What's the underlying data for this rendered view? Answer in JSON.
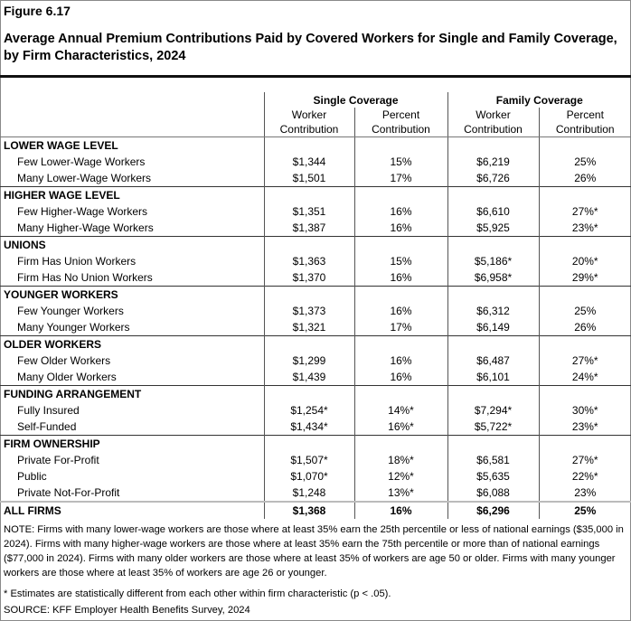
{
  "figure_label": "Figure 6.17",
  "title": "Average Annual Premium Contributions Paid by Covered Workers for Single and Family Coverage, by Firm Characteristics, 2024",
  "header": {
    "groups": [
      "Single Coverage",
      "Family Coverage"
    ],
    "columns": [
      [
        "Worker",
        "Contribution"
      ],
      [
        "Percent",
        "Contribution"
      ],
      [
        "Worker",
        "Contribution"
      ],
      [
        "Percent",
        "Contribution"
      ]
    ]
  },
  "sections": [
    {
      "name": "LOWER WAGE LEVEL",
      "rows": [
        {
          "label": "Few Lower-Wage Workers",
          "values": [
            "$1,344",
            "15%",
            "$6,219",
            "25%"
          ]
        },
        {
          "label": "Many Lower-Wage Workers",
          "values": [
            "$1,501",
            "17%",
            "$6,726",
            "26%"
          ]
        }
      ]
    },
    {
      "name": "HIGHER WAGE LEVEL",
      "rows": [
        {
          "label": "Few Higher-Wage Workers",
          "values": [
            "$1,351",
            "16%",
            "$6,610",
            "27%*"
          ]
        },
        {
          "label": "Many Higher-Wage Workers",
          "values": [
            "$1,387",
            "16%",
            "$5,925",
            "23%*"
          ]
        }
      ]
    },
    {
      "name": "UNIONS",
      "rows": [
        {
          "label": "Firm Has Union Workers",
          "values": [
            "$1,363",
            "15%",
            "$5,186*",
            "20%*"
          ]
        },
        {
          "label": "Firm Has No Union Workers",
          "values": [
            "$1,370",
            "16%",
            "$6,958*",
            "29%*"
          ]
        }
      ]
    },
    {
      "name": "YOUNGER WORKERS",
      "rows": [
        {
          "label": "Few Younger Workers",
          "values": [
            "$1,373",
            "16%",
            "$6,312",
            "25%"
          ]
        },
        {
          "label": "Many Younger Workers",
          "values": [
            "$1,321",
            "17%",
            "$6,149",
            "26%"
          ]
        }
      ]
    },
    {
      "name": "OLDER WORKERS",
      "rows": [
        {
          "label": "Few Older Workers",
          "values": [
            "$1,299",
            "16%",
            "$6,487",
            "27%*"
          ]
        },
        {
          "label": "Many Older Workers",
          "values": [
            "$1,439",
            "16%",
            "$6,101",
            "24%*"
          ]
        }
      ]
    },
    {
      "name": "FUNDING ARRANGEMENT",
      "rows": [
        {
          "label": "Fully Insured",
          "values": [
            "$1,254*",
            "14%*",
            "$7,294*",
            "30%*"
          ]
        },
        {
          "label": "Self-Funded",
          "values": [
            "$1,434*",
            "16%*",
            "$5,722*",
            "23%*"
          ]
        }
      ]
    },
    {
      "name": "FIRM OWNERSHIP",
      "rows": [
        {
          "label": "Private For-Profit",
          "values": [
            "$1,507*",
            "18%*",
            "$6,581",
            "27%*"
          ]
        },
        {
          "label": "Public",
          "values": [
            "$1,070*",
            "12%*",
            "$5,635",
            "22%*"
          ]
        },
        {
          "label": "Private Not-For-Profit",
          "values": [
            "$1,248",
            "13%*",
            "$6,088",
            "23%"
          ]
        }
      ]
    }
  ],
  "total": {
    "label": "ALL FIRMS",
    "values": [
      "$1,368",
      "16%",
      "$6,296",
      "25%"
    ]
  },
  "note": "NOTE: Firms with many lower-wage workers are those where at least 35% earn the 25th percentile or less of national earnings ($35,000 in 2024). Firms with many higher-wage workers are those where at least 35% earn the 75th percentile or more than of national earnings ($77,000 in 2024). Firms with many older workers are those where at least 35% of workers are age 50 or older. Firms with many younger workers are those where at least 35% of workers are age 26 or younger.",
  "significance_note": "* Estimates are statistically different from each other within firm characteristic (p < .05).",
  "source": "SOURCE: KFF Employer Health Benefits Survey, 2024"
}
